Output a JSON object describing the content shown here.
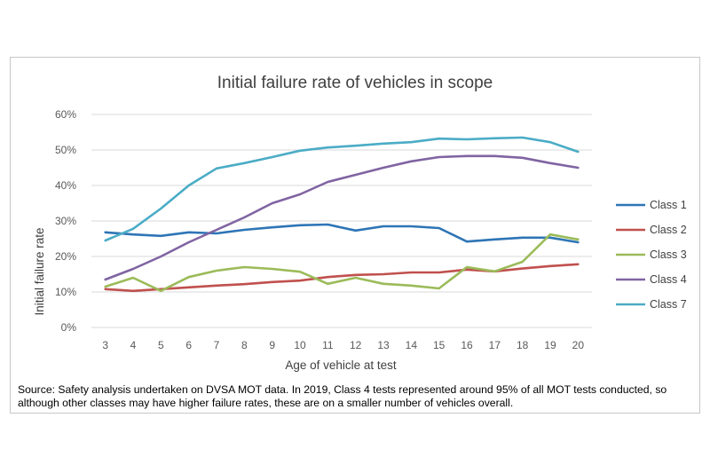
{
  "chart_data": {
    "type": "line",
    "title": "Initial failure rate of vehicles in scope",
    "xlabel": "Age of vehicle at test",
    "ylabel": "Initial failure rate",
    "x": [
      3,
      4,
      5,
      6,
      7,
      8,
      9,
      10,
      11,
      12,
      13,
      14,
      15,
      16,
      17,
      18,
      19,
      20
    ],
    "ylim": [
      0,
      60
    ],
    "yticks": [
      0,
      10,
      20,
      30,
      40,
      50,
      60
    ],
    "ytick_labels": [
      "0%",
      "10%",
      "20%",
      "30%",
      "40%",
      "50%",
      "60%"
    ],
    "grid": true,
    "legend_position": "right",
    "series": [
      {
        "name": "Class 1",
        "color": "#2e75b6",
        "values": [
          26.8,
          26.2,
          25.8,
          26.8,
          26.5,
          27.5,
          28.2,
          28.8,
          29.0,
          27.3,
          28.5,
          28.5,
          28.0,
          24.2,
          24.8,
          25.3,
          25.3,
          24.0
        ]
      },
      {
        "name": "Class 2",
        "color": "#c0504d",
        "values": [
          10.8,
          10.3,
          10.8,
          11.3,
          11.8,
          12.2,
          12.8,
          13.2,
          14.2,
          14.8,
          15.0,
          15.5,
          15.5,
          16.3,
          15.8,
          16.6,
          17.3,
          17.8
        ]
      },
      {
        "name": "Class 3",
        "color": "#9bbb59",
        "values": [
          11.5,
          14.0,
          10.3,
          14.2,
          16.0,
          17.0,
          16.5,
          15.7,
          12.3,
          14.0,
          12.3,
          11.8,
          11.0,
          17.0,
          15.8,
          18.5,
          26.2,
          24.8
        ]
      },
      {
        "name": "Class 4",
        "color": "#8064a2",
        "values": [
          13.5,
          16.5,
          20.0,
          24.0,
          27.5,
          31.0,
          35.0,
          37.5,
          41.0,
          43.0,
          45.0,
          46.8,
          48.0,
          48.3,
          48.3,
          47.8,
          46.3,
          45.0
        ]
      },
      {
        "name": "Class 7",
        "color": "#4bacc6",
        "values": [
          24.5,
          27.8,
          33.5,
          40.0,
          44.8,
          46.3,
          48.0,
          49.8,
          50.7,
          51.2,
          51.8,
          52.2,
          53.2,
          53.0,
          53.3,
          53.5,
          52.2,
          49.5
        ]
      }
    ]
  },
  "source_note": "Source: Safety analysis undertaken on DVSA MOT data. In 2019, Class 4 tests represented around 95% of all MOT tests conducted, so although other classes may have higher failure rates, these are on a smaller number of vehicles overall."
}
